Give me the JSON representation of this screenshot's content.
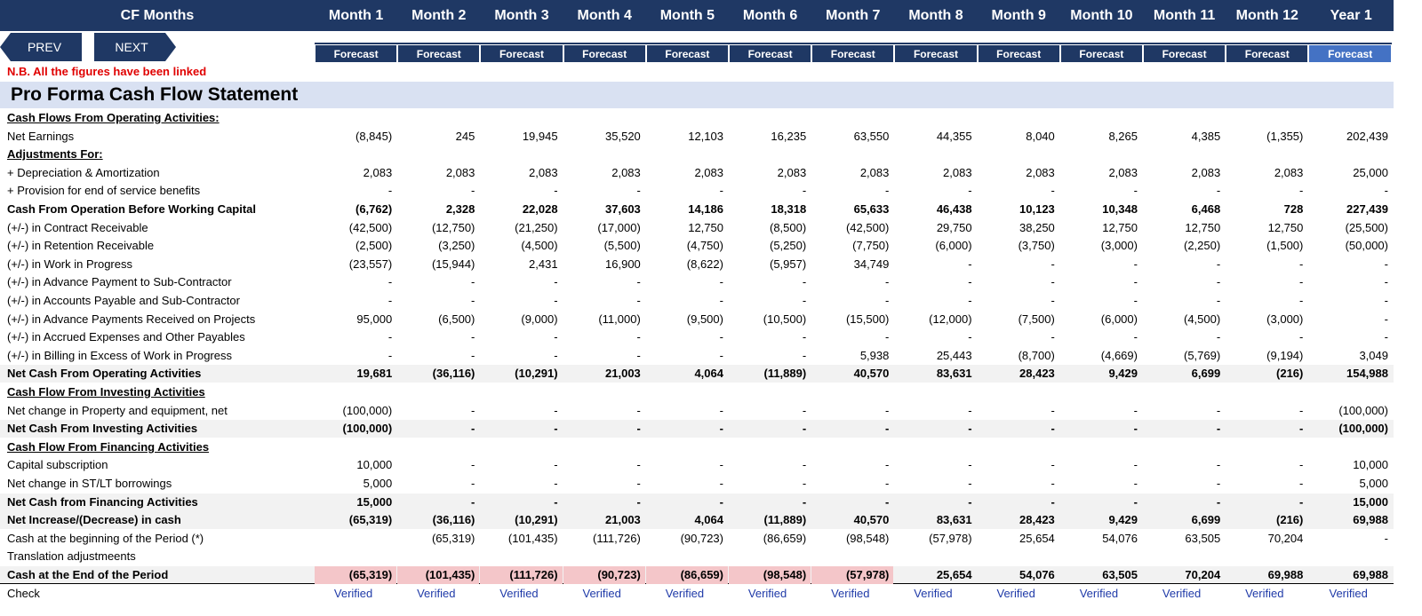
{
  "header": {
    "label": "CF Months",
    "periods": [
      "Month 1",
      "Month 2",
      "Month 3",
      "Month 4",
      "Month 5",
      "Month 6",
      "Month 7",
      "Month 8",
      "Month 9",
      "Month 10",
      "Month 11",
      "Month 12",
      "Year 1"
    ],
    "status": [
      "Forecast",
      "Forecast",
      "Forecast",
      "Forecast",
      "Forecast",
      "Forecast",
      "Forecast",
      "Forecast",
      "Forecast",
      "Forecast",
      "Forecast",
      "Forecast",
      "Forecast"
    ]
  },
  "nav": {
    "prev": "PREV",
    "next": "NEXT"
  },
  "note": "N.B. All the figures have been linked",
  "title": "Pro Forma Cash Flow Statement",
  "colors": {
    "header_bg": "#1f3864",
    "year_bg": "#4472c4",
    "title_bg": "#d9e1f2",
    "shade": "#f2f2f2",
    "highlight": "#f4c6c9",
    "note": "#e00000",
    "link": "#1f3aa8"
  },
  "rows": [
    {
      "label": "Cash Flows From Operating Activities:",
      "type": "section",
      "values": []
    },
    {
      "label": "Net Earnings",
      "type": "normal",
      "values": [
        "(8,845)",
        "245",
        "19,945",
        "35,520",
        "12,103",
        "16,235",
        "63,550",
        "44,355",
        "8,040",
        "8,265",
        "4,385",
        "(1,355)",
        "202,439"
      ]
    },
    {
      "label": "Adjustments For:",
      "type": "section",
      "values": []
    },
    {
      "label": "+ Depreciation & Amortization",
      "type": "normal",
      "values": [
        "2,083",
        "2,083",
        "2,083",
        "2,083",
        "2,083",
        "2,083",
        "2,083",
        "2,083",
        "2,083",
        "2,083",
        "2,083",
        "2,083",
        "25,000"
      ]
    },
    {
      "label": "+ Provision for end of service benefits",
      "type": "normal",
      "values": [
        "-",
        "-",
        "-",
        "-",
        "-",
        "-",
        "-",
        "-",
        "-",
        "-",
        "-",
        "-",
        "-"
      ]
    },
    {
      "label": "Cash From Operation Before Working Capital",
      "type": "bold",
      "values": [
        "(6,762)",
        "2,328",
        "22,028",
        "37,603",
        "14,186",
        "18,318",
        "65,633",
        "46,438",
        "10,123",
        "10,348",
        "6,468",
        "728",
        "227,439"
      ]
    },
    {
      "label": "(+/-) in Contract Receivable",
      "type": "normal",
      "values": [
        "(42,500)",
        "(12,750)",
        "(21,250)",
        "(17,000)",
        "12,750",
        "(8,500)",
        "(42,500)",
        "29,750",
        "38,250",
        "12,750",
        "12,750",
        "12,750",
        "(25,500)"
      ]
    },
    {
      "label": "(+/-) in Retention Receivable",
      "type": "normal",
      "values": [
        "(2,500)",
        "(3,250)",
        "(4,500)",
        "(5,500)",
        "(4,750)",
        "(5,250)",
        "(7,750)",
        "(6,000)",
        "(3,750)",
        "(3,000)",
        "(2,250)",
        "(1,500)",
        "(50,000)"
      ]
    },
    {
      "label": "(+/-) in Work in Progress",
      "type": "normal",
      "values": [
        "(23,557)",
        "(15,944)",
        "2,431",
        "16,900",
        "(8,622)",
        "(5,957)",
        "34,749",
        "-",
        "-",
        "-",
        "-",
        "-",
        "-"
      ]
    },
    {
      "label": "(+/-) in Advance Payment to Sub-Contractor",
      "type": "normal",
      "values": [
        "-",
        "-",
        "-",
        "-",
        "-",
        "-",
        "-",
        "-",
        "-",
        "-",
        "-",
        "-",
        "-"
      ]
    },
    {
      "label": "(+/-) in Accounts Payable and Sub-Contractor",
      "type": "normal",
      "values": [
        "-",
        "-",
        "-",
        "-",
        "-",
        "-",
        "-",
        "-",
        "-",
        "-",
        "-",
        "-",
        "-"
      ]
    },
    {
      "label": "(+/-) in Advance Payments Received on Projects",
      "type": "normal",
      "values": [
        "95,000",
        "(6,500)",
        "(9,000)",
        "(11,000)",
        "(9,500)",
        "(10,500)",
        "(15,500)",
        "(12,000)",
        "(7,500)",
        "(6,000)",
        "(4,500)",
        "(3,000)",
        "-"
      ]
    },
    {
      "label": "(+/-) in Accrued Expenses and Other Payables",
      "type": "normal",
      "values": [
        "-",
        "-",
        "-",
        "-",
        "-",
        "-",
        "-",
        "-",
        "-",
        "-",
        "-",
        "-",
        "-"
      ]
    },
    {
      "label": "(+/-) in Billing in Excess of Work in Progress",
      "type": "normal",
      "values": [
        "-",
        "-",
        "-",
        "-",
        "-",
        "-",
        "5,938",
        "25,443",
        "(8,700)",
        "(4,669)",
        "(5,769)",
        "(9,194)",
        "3,049"
      ]
    },
    {
      "label": "Net Cash From Operating Activities",
      "type": "bold shade",
      "values": [
        "19,681",
        "(36,116)",
        "(10,291)",
        "21,003",
        "4,064",
        "(11,889)",
        "40,570",
        "83,631",
        "28,423",
        "9,429",
        "6,699",
        "(216)",
        "154,988"
      ]
    },
    {
      "label": "Cash Flow From Investing Activities",
      "type": "section",
      "values": []
    },
    {
      "label": "Net change in Property and equipment, net",
      "type": "normal",
      "values": [
        "(100,000)",
        "-",
        "-",
        "-",
        "-",
        "-",
        "-",
        "-",
        "-",
        "-",
        "-",
        "-",
        "(100,000)"
      ]
    },
    {
      "label": "Net Cash From Investing Activities",
      "type": "bold shade",
      "values": [
        "(100,000)",
        "-",
        "-",
        "-",
        "-",
        "-",
        "-",
        "-",
        "-",
        "-",
        "-",
        "-",
        "(100,000)"
      ]
    },
    {
      "label": "Cash Flow From Financing Activities",
      "type": "section",
      "values": []
    },
    {
      "label": "Capital subscription",
      "type": "normal",
      "values": [
        "10,000",
        "-",
        "-",
        "-",
        "-",
        "-",
        "-",
        "-",
        "-",
        "-",
        "-",
        "-",
        "10,000"
      ]
    },
    {
      "label": "Net change in ST/LT borrowings",
      "type": "normal",
      "values": [
        "5,000",
        "-",
        "-",
        "-",
        "-",
        "-",
        "-",
        "-",
        "-",
        "-",
        "-",
        "-",
        "5,000"
      ]
    },
    {
      "label": "Net Cash from Financing Activities",
      "type": "bold shade",
      "values": [
        "15,000",
        "-",
        "-",
        "-",
        "-",
        "-",
        "-",
        "-",
        "-",
        "-",
        "-",
        "-",
        "15,000"
      ]
    },
    {
      "label": "Net Increase/(Decrease) in cash",
      "type": "bold shade",
      "values": [
        "(65,319)",
        "(36,116)",
        "(10,291)",
        "21,003",
        "4,064",
        "(11,889)",
        "40,570",
        "83,631",
        "28,423",
        "9,429",
        "6,699",
        "(216)",
        "69,988"
      ]
    },
    {
      "label": "Cash at the beginning of the Period (*)",
      "type": "normal",
      "values": [
        "",
        "(65,319)",
        "(101,435)",
        "(111,726)",
        "(90,723)",
        "(86,659)",
        "(98,548)",
        "(57,978)",
        "25,654",
        "54,076",
        "63,505",
        "70,204",
        "-"
      ]
    },
    {
      "label": "Translation adjustmeents",
      "type": "normal",
      "values": []
    },
    {
      "label": "Cash at the End of the Period",
      "type": "bold shade total endrow",
      "values": [
        "(65,319)",
        "(101,435)",
        "(111,726)",
        "(90,723)",
        "(86,659)",
        "(98,548)",
        "(57,978)",
        "25,654",
        "54,076",
        "63,505",
        "70,204",
        "69,988",
        "69,988"
      ],
      "highlight": [
        true,
        true,
        true,
        true,
        true,
        true,
        true,
        false,
        false,
        false,
        false,
        false,
        false
      ]
    },
    {
      "label": "Check",
      "type": "check",
      "values": [
        "Verified",
        "Verified",
        "Verified",
        "Verified",
        "Verified",
        "Verified",
        "Verified",
        "Verified",
        "Verified",
        "Verified",
        "Verified",
        "Verified",
        "Verified"
      ]
    }
  ]
}
